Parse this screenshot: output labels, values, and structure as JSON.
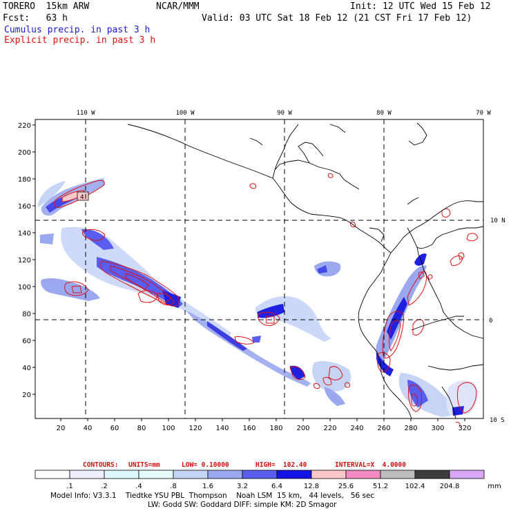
{
  "header": {
    "model": "TORERO  15km ARW",
    "center": "NCAR/MMM",
    "init": "Init: 12 UTC Wed 15 Feb 12",
    "fcst": "Fcst:   63 h",
    "valid": "Valid: 03 UTC Sat 18 Feb 12 (21 CST Fri 17 Feb 12)",
    "cumulus": "Cumulus precip. in past 3 h",
    "explicit": "Explicit precip. in past 3 h"
  },
  "map": {
    "lon_labels": [
      "110 W",
      "100 W",
      "90 W",
      "80 W",
      "70 W"
    ],
    "lat_labels": [
      "10 N",
      "0",
      "10 S"
    ],
    "y_ticks": [
      "220",
      "200",
      "180",
      "160",
      "140",
      "120",
      "100",
      "80",
      "60",
      "40",
      "20"
    ],
    "x_ticks": [
      "20",
      "40",
      "60",
      "80",
      "100",
      "120",
      "140",
      "160",
      "180",
      "200",
      "220",
      "240",
      "260",
      "280",
      "300",
      "320"
    ],
    "box_label": "4"
  },
  "contours": {
    "label": "CONTOURS:",
    "units": "UNITS=mm",
    "low": "LOW= 0.10000",
    "high": "HIGH=  102.40",
    "interval": "INTERVAL=X  4.0000"
  },
  "colorbar": {
    "levels": [
      ".1",
      ".2",
      ".4",
      ".8",
      "1.6",
      "3.2",
      "6.4",
      "12.8",
      "25.6",
      "51.2",
      "102.4",
      "204.8"
    ],
    "unit": "mm",
    "colors": [
      "#ffffff",
      "#eef0ff",
      "#dff8ff",
      "#e6fbfb",
      "#c6d4f6",
      "#9aa8f0",
      "#5a5ef0",
      "#1414e6",
      "#ffc8c8",
      "#f28cc0",
      "#bdbdbd",
      "#3c3c3c",
      "#d8a8f6"
    ]
  },
  "footer": {
    "line1": "Model Info: V3.3.1    Tiedtke YSU PBL  Thompson    Noah LSM  15 km,   44 levels,   56 sec",
    "line2": "LW: Godd SW: Goddard DIFF: simple KM: 2D Smagor"
  }
}
